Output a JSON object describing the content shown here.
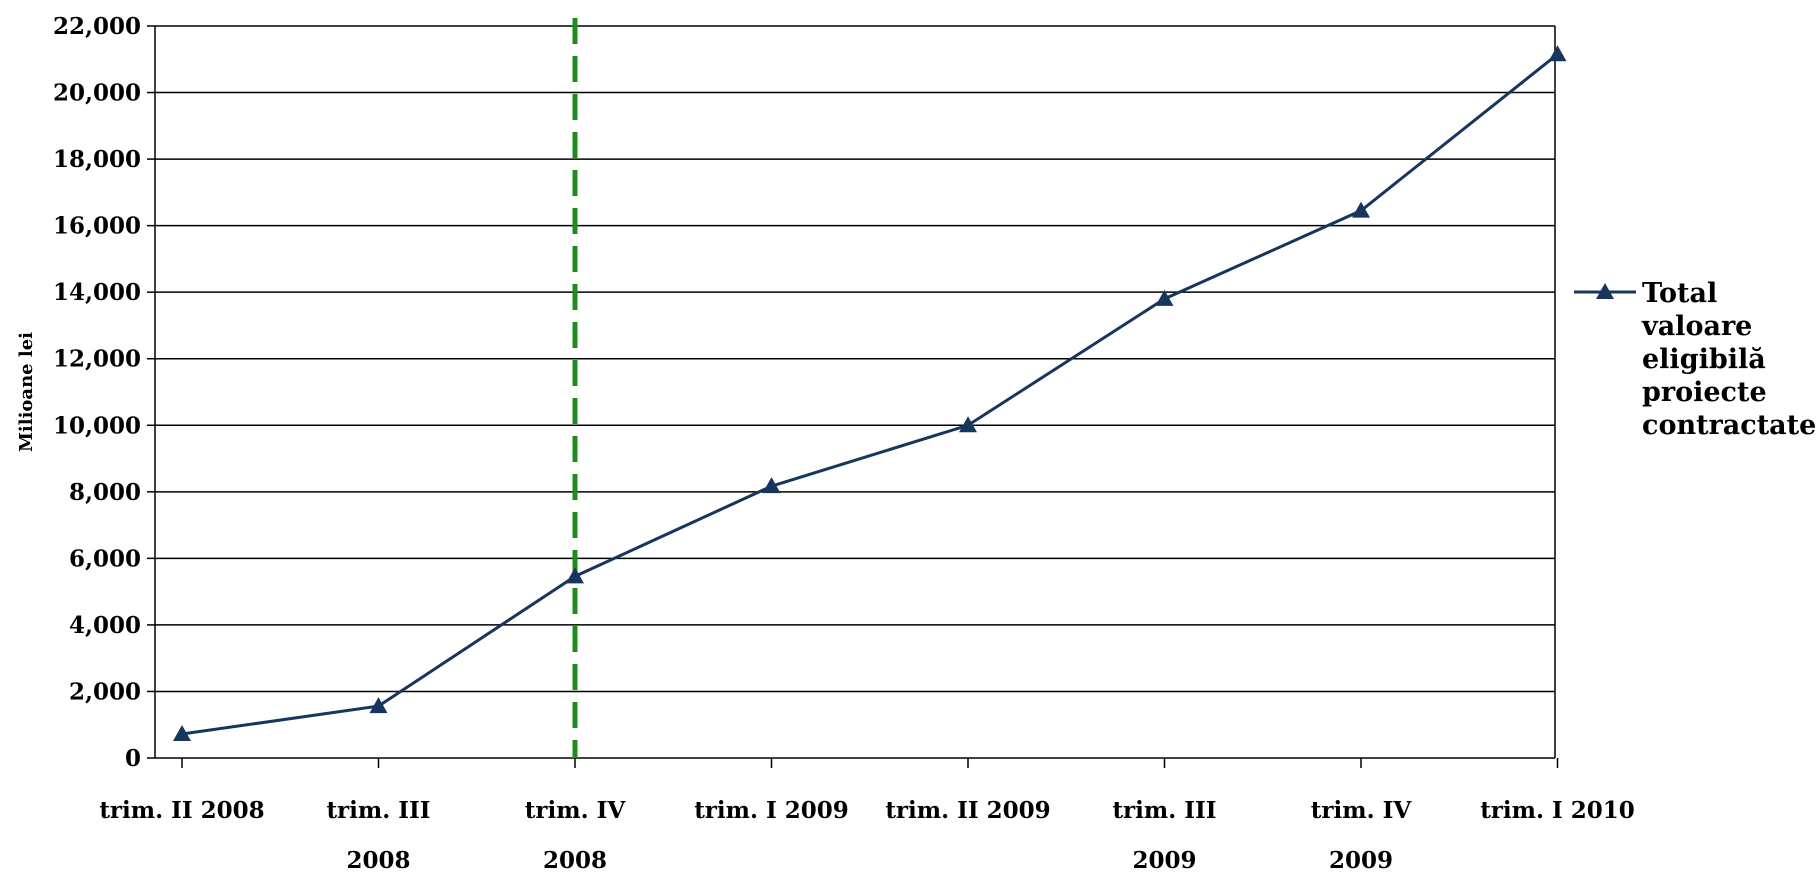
{
  "chart_data": {
    "type": "line",
    "title": "",
    "xlabel": "",
    "ylabel": "Milioane lei",
    "categories": [
      [
        "trim. II 2008"
      ],
      [
        "trim. III",
        "2008"
      ],
      [
        "trim. IV",
        "2008"
      ],
      [
        "trim. I 2009"
      ],
      [
        "trim. II 2009"
      ],
      [
        "trim. III",
        "2009"
      ],
      [
        "trim. IV",
        "2009"
      ],
      [
        "trim. I 2010"
      ]
    ],
    "series": [
      {
        "name": [
          "Total",
          "valoare",
          "eligibilă",
          "proiecte",
          "contractate"
        ],
        "values": [
          720,
          1560,
          5460,
          8170,
          10000,
          13800,
          16450,
          21150
        ],
        "color": "#17365D",
        "marker": "triangle"
      }
    ],
    "ylim": [
      0,
      22000
    ],
    "yticks": [
      0,
      2000,
      4000,
      6000,
      8000,
      10000,
      12000,
      14000,
      16000,
      18000,
      20000,
      22000
    ],
    "ytick_labels": [
      "0",
      "2,000",
      "4,000",
      "6,000",
      "8,000",
      "10,000",
      "12,000",
      "14,000",
      "16,000",
      "18,000",
      "20,000",
      "22,000"
    ],
    "grid": "horizontal",
    "reference_line": {
      "category_index": 2,
      "style": "dashed",
      "color": "#1E8C1E"
    },
    "legend_position": "right"
  }
}
